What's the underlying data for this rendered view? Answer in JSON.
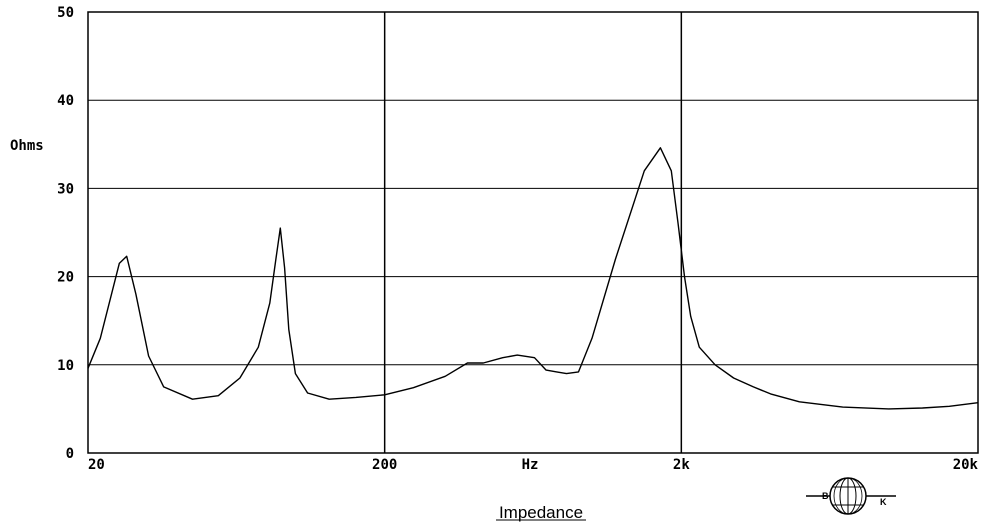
{
  "chart_data": {
    "type": "line",
    "caption": "Impedance",
    "xlabel": "Hz",
    "ylabel": "Ohms",
    "x_scale": "log",
    "xlim": [
      20,
      20000
    ],
    "ylim": [
      0,
      50
    ],
    "grid": true,
    "x_ticks": [
      {
        "value": 20,
        "label": "20"
      },
      {
        "value": 200,
        "label": "200"
      },
      {
        "value": 2000,
        "label": "2k"
      },
      {
        "value": 20000,
        "label": "20k"
      }
    ],
    "y_ticks": [
      0,
      10,
      20,
      30,
      40,
      50
    ],
    "series": [
      {
        "color": "#000000",
        "x": [
          20,
          22,
          24,
          25.5,
          27,
          29,
          32,
          36,
          45,
          55,
          65,
          75,
          82,
          86,
          89,
          92,
          95,
          100,
          110,
          130,
          160,
          200,
          250,
          320,
          380,
          430,
          500,
          560,
          640,
          700,
          760,
          820,
          900,
          1000,
          1200,
          1500,
          1700,
          1850,
          1950,
          2050,
          2150,
          2300,
          2600,
          3000,
          3500,
          4000,
          5000,
          7000,
          10000,
          13000,
          16000,
          20000
        ],
        "y": [
          9.6,
          13,
          18,
          21.5,
          22.3,
          18,
          11,
          7.5,
          6.1,
          6.5,
          8.5,
          12,
          17,
          22,
          25.5,
          21,
          14,
          9,
          6.8,
          6.1,
          6.3,
          6.6,
          7.4,
          8.7,
          10.2,
          10.2,
          10.8,
          11.1,
          10.8,
          9.4,
          9.2,
          9.0,
          9.2,
          13,
          22,
          32,
          34.6,
          32,
          26,
          20,
          15.5,
          12,
          10,
          8.5,
          7.5,
          6.7,
          5.8,
          5.2,
          5.0,
          5.1,
          5.3,
          5.7
        ]
      }
    ]
  },
  "logo": {
    "letters": [
      "B",
      "K"
    ]
  }
}
